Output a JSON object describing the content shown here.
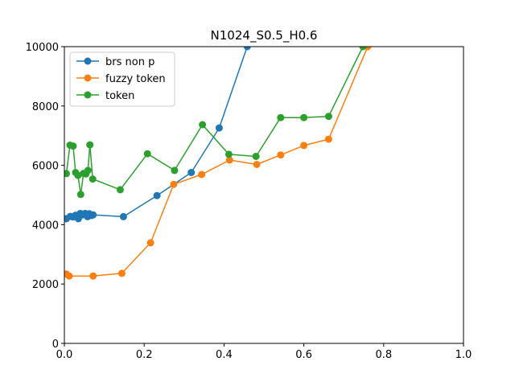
{
  "chart_data": {
    "type": "line",
    "title": "N1024_S0.5_H0.6",
    "xlabel": "",
    "ylabel": "",
    "xlim": [
      0,
      1
    ],
    "ylim": [
      0,
      10000
    ],
    "xticks": [
      "0.0",
      "0.2",
      "0.4",
      "0.6",
      "0.8",
      "1.0"
    ],
    "xtick_values": [
      0,
      0.2,
      0.4,
      0.6,
      0.8,
      1.0
    ],
    "yticks": [
      "0",
      "2000",
      "4000",
      "6000",
      "8000",
      "10000"
    ],
    "ytick_values": [
      0,
      2000,
      4000,
      6000,
      8000,
      10000
    ],
    "grid": false,
    "legend_position": "top-left",
    "series": [
      {
        "name": "brs non p",
        "color": "#1f77b4",
        "x": [
          0.005,
          0.015,
          0.022,
          0.028,
          0.035,
          0.04,
          0.046,
          0.052,
          0.058,
          0.062,
          0.068,
          0.072,
          0.148,
          0.232,
          0.318,
          0.388,
          0.458
        ],
        "y": [
          4200,
          4280,
          4260,
          4320,
          4200,
          4380,
          4330,
          4380,
          4270,
          4370,
          4310,
          4330,
          4270,
          4980,
          5760,
          7260,
          10000
        ]
      },
      {
        "name": "fuzzy token",
        "color": "#ff7f0e",
        "x": [
          0.005,
          0.012,
          0.072,
          0.144,
          0.216,
          0.274,
          0.344,
          0.414,
          0.482,
          0.542,
          0.6,
          0.662,
          0.76
        ],
        "y": [
          2340,
          2270,
          2270,
          2360,
          3390,
          5360,
          5690,
          6180,
          6030,
          6350,
          6670,
          6880,
          10000
        ]
      },
      {
        "name": "token",
        "color": "#2ca02c",
        "x": [
          0.005,
          0.014,
          0.022,
          0.028,
          0.034,
          0.041,
          0.048,
          0.054,
          0.059,
          0.064,
          0.071,
          0.14,
          0.208,
          0.276,
          0.346,
          0.412,
          0.48,
          0.542,
          0.6,
          0.662,
          0.748
        ],
        "y": [
          5720,
          6680,
          6650,
          5760,
          5660,
          5020,
          5730,
          5710,
          5830,
          6690,
          5540,
          5180,
          6390,
          5830,
          7370,
          6370,
          6300,
          7610,
          7610,
          7650,
          10000
        ]
      }
    ]
  }
}
